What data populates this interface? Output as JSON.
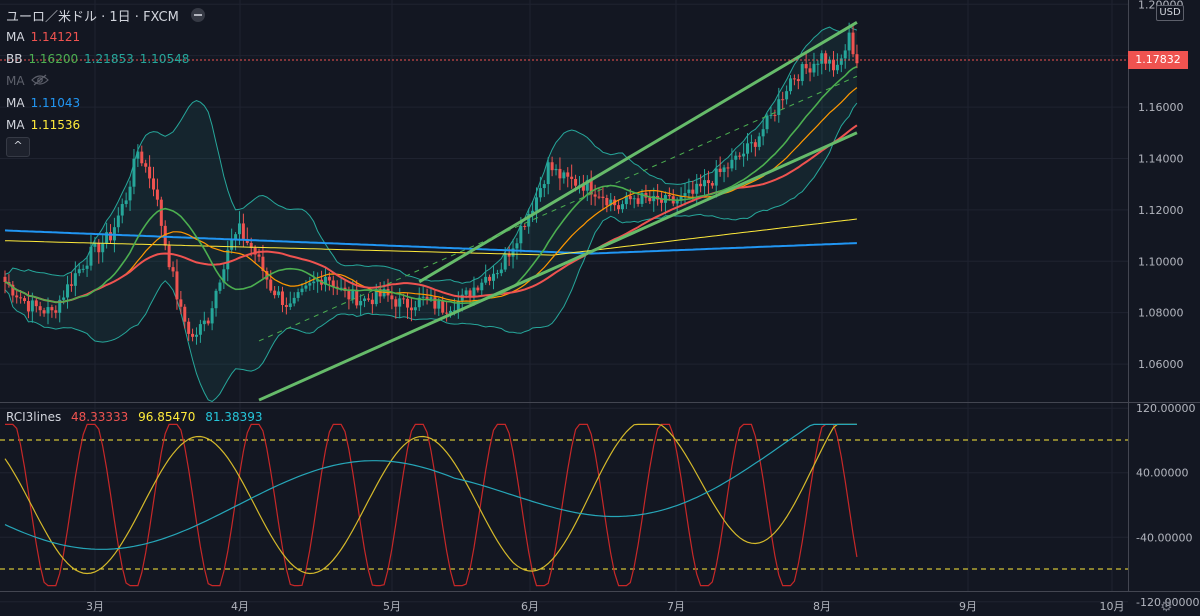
{
  "header": {
    "symbol": "ユーロ／米ドル · 1日 · FXCM"
  },
  "legend": {
    "ma1": {
      "name": "MA",
      "value": "1.14121",
      "color": "#ef5350"
    },
    "bb": {
      "name": "BB",
      "basis": "1.16200",
      "upper": "1.21853",
      "lower": "1.10548",
      "color": "#4caf50",
      "upper_color": "#26a69a"
    },
    "ma_hidden": {
      "name": "MA"
    },
    "ma2": {
      "name": "MA",
      "value": "1.11043",
      "color": "#2196f3"
    },
    "ma3": {
      "name": "MA",
      "value": "1.11536",
      "color": "#ffeb3b"
    },
    "collapse_icon": "chevron-up-icon",
    "eye_icon": "eye-hidden-icon"
  },
  "price_axis": {
    "currency": "USD",
    "current_price": "1.17832",
    "ticks": [
      "1.20000",
      "1.18000",
      "1.16000",
      "1.14000",
      "1.12000",
      "1.10000",
      "1.08000",
      "1.06000"
    ]
  },
  "rci": {
    "name": "RCI3lines",
    "values": [
      {
        "value": "48.33333",
        "color": "#ef5350"
      },
      {
        "value": "96.85470",
        "color": "#ffeb3b"
      },
      {
        "value": "81.38393",
        "color": "#26c6da"
      }
    ],
    "ticks": [
      "120.00000",
      "40.00000",
      "-40.00000",
      "-120.00000"
    ],
    "levels": [
      80,
      -80
    ]
  },
  "time_axis": {
    "labels": [
      "3月",
      "4月",
      "5月",
      "6月",
      "7月",
      "8月",
      "9月",
      "10月"
    ]
  },
  "chart_data": {
    "type": "candlestick",
    "instrument": "EUR/USD",
    "ylim": [
      1.04,
      1.2
    ],
    "x_months": [
      "3月",
      "4月",
      "5月",
      "6月",
      "7月",
      "8月",
      "9月",
      "10月"
    ],
    "candles_close_path": [
      [
        0,
        1.092
      ],
      [
        6,
        1.083
      ],
      [
        12,
        1.08
      ],
      [
        18,
        1.095
      ],
      [
        22,
        1.103
      ],
      [
        27,
        1.11
      ],
      [
        31,
        1.125
      ],
      [
        34,
        1.143
      ],
      [
        38,
        1.13
      ],
      [
        41,
        1.107
      ],
      [
        45,
        1.08
      ],
      [
        48,
        1.07
      ],
      [
        52,
        1.078
      ],
      [
        57,
        1.105
      ],
      [
        60,
        1.112
      ],
      [
        64,
        1.103
      ],
      [
        68,
        1.09
      ],
      [
        73,
        1.082
      ],
      [
        78,
        1.09
      ],
      [
        82,
        1.095
      ],
      [
        87,
        1.087
      ],
      [
        92,
        1.085
      ],
      [
        97,
        1.087
      ],
      [
        102,
        1.083
      ],
      [
        107,
        1.085
      ],
      [
        112,
        1.082
      ],
      [
        117,
        1.085
      ],
      [
        122,
        1.093
      ],
      [
        127,
        1.098
      ],
      [
        132,
        1.113
      ],
      [
        136,
        1.125
      ],
      [
        139,
        1.137
      ],
      [
        143,
        1.132
      ],
      [
        148,
        1.13
      ],
      [
        152,
        1.127
      ],
      [
        157,
        1.121
      ],
      [
        161,
        1.125
      ],
      [
        166,
        1.123
      ],
      [
        171,
        1.123
      ],
      [
        176,
        1.126
      ],
      [
        181,
        1.132
      ],
      [
        186,
        1.138
      ],
      [
        191,
        1.145
      ],
      [
        196,
        1.156
      ],
      [
        201,
        1.171
      ],
      [
        205,
        1.175
      ],
      [
        209,
        1.18
      ],
      [
        213,
        1.174
      ],
      [
        216,
        1.187
      ],
      [
        218,
        1.178
      ]
    ],
    "trend_lines": [
      {
        "name": "upper-channel",
        "x": [
          106,
          218
        ],
        "y": [
          1.092,
          1.193
        ]
      },
      {
        "name": "lower-channel",
        "x": [
          65,
          218
        ],
        "y": [
          1.046,
          1.15
        ]
      },
      {
        "name": "middle-channel",
        "x": [
          65,
          218
        ],
        "y": [
          1.069,
          1.172
        ]
      }
    ]
  }
}
